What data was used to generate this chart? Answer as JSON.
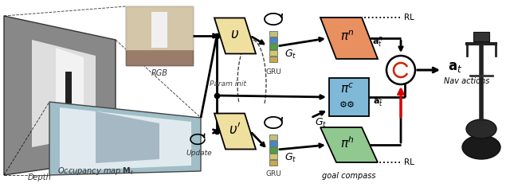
{
  "bg_color": "#ffffff",
  "fig_width": 6.4,
  "fig_height": 2.4,
  "dpi": 100,
  "depth_label": "Depth",
  "rgb_label": "RGB",
  "occ_label": "Occupancy map $\\mathbf{M}_t$",
  "update_label": "Update",
  "param_init_label": "Param init",
  "gru_label": "GRU",
  "a_t_label": "$\\mathbf{a}_t$",
  "nav_label": "Nav actions",
  "rl_label": "RL",
  "goal_compass_label": "goal compass",
  "v_color": "#f0e0a0",
  "pi_n_color": "#e89060",
  "pi_c_color": "#80b8d8",
  "pi_h_color": "#90c890",
  "bar_colors": [
    "#c8a850",
    "#d0c870",
    "#50a040",
    "#4888c0",
    "#c0c080"
  ],
  "arrow_color": "#000000",
  "red_arrow_color": "#dd0000"
}
